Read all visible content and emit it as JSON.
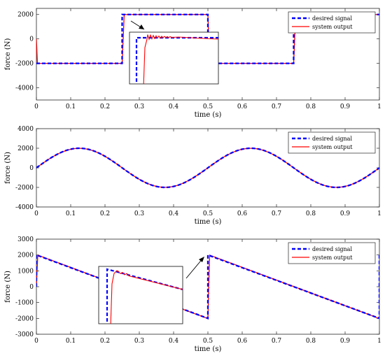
{
  "chart_data": [
    {
      "type": "line",
      "signal": "square",
      "xlabel": "time (s)",
      "ylabel": "force (N)",
      "xlim": [
        0,
        1
      ],
      "ylim": [
        -5000,
        2500
      ],
      "xticks": [
        "0",
        "0.1",
        "0.2",
        "0.3",
        "0.4",
        "0.5",
        "0.6",
        "0.7",
        "0.8",
        "0.9",
        "1"
      ],
      "yticks": [
        "-4000",
        "-2000",
        "0",
        "2000"
      ],
      "ytick_values": [
        -4000,
        -2000,
        0,
        2000
      ],
      "amplitude": 2000,
      "period": 1,
      "legend": {
        "position": "top-right",
        "entries": [
          "desired signal",
          "system output"
        ]
      },
      "series": [
        {
          "name": "desired signal",
          "style": "dashed",
          "color": "#0000ff",
          "x": [
            0,
            0.25,
            0.25,
            0.5,
            0.5,
            0.75,
            0.75,
            1
          ],
          "y": [
            -2000,
            -2000,
            2000,
            2000,
            -2000,
            -2000,
            2000,
            2000
          ]
        },
        {
          "name": "system output",
          "style": "solid",
          "color": "#ff0000",
          "x": [
            0,
            0.003,
            0.25,
            0.256,
            0.5,
            0.505,
            0.75,
            0.756,
            1
          ],
          "y": [
            0,
            -2000,
            -2000,
            2000,
            2000,
            -2000,
            -2000,
            2000,
            2000
          ]
        }
      ],
      "inset": {
        "type": "zoom",
        "region": "step at t = 0.25 s"
      }
    },
    {
      "type": "line",
      "signal": "sine",
      "xlabel": "time (s)",
      "ylabel": "force (N)",
      "xlim": [
        0,
        1
      ],
      "ylim": [
        -4000,
        4000
      ],
      "xticks": [
        "0",
        "0.1",
        "0.2",
        "0.3",
        "0.4",
        "0.5",
        "0.6",
        "0.7",
        "0.8",
        "0.9",
        "1"
      ],
      "yticks": [
        "-4000",
        "-2000",
        "0",
        "2000",
        "4000"
      ],
      "ytick_values": [
        -4000,
        -2000,
        0,
        2000,
        4000
      ],
      "amplitude": 2000,
      "period": 0.5,
      "legend": {
        "position": "top-right",
        "entries": [
          "desired signal",
          "system output"
        ]
      },
      "series": [
        {
          "name": "desired signal",
          "style": "dashed",
          "color": "#0000ff",
          "x": [
            0,
            0.125,
            0.25,
            0.375,
            0.5,
            0.625,
            0.75,
            0.875,
            1
          ],
          "y": [
            0,
            2000,
            0,
            -2000,
            0,
            2000,
            0,
            -2000,
            0
          ]
        },
        {
          "name": "system output",
          "style": "solid",
          "color": "#ff0000",
          "x": [
            0,
            0.125,
            0.25,
            0.375,
            0.5,
            0.625,
            0.75,
            0.875,
            1
          ],
          "y": [
            0,
            2000,
            0,
            -2000,
            0,
            2000,
            0,
            -2000,
            0
          ]
        }
      ]
    },
    {
      "type": "line",
      "signal": "sawtooth",
      "xlabel": "time (s)",
      "ylabel": "force (N)",
      "xlim": [
        0,
        1
      ],
      "ylim": [
        -3000,
        3000
      ],
      "xticks": [
        "0",
        "0.1",
        "0.2",
        "0.3",
        "0.4",
        "0.5",
        "0.6",
        "0.7",
        "0.8",
        "0.9",
        "1"
      ],
      "yticks": [
        "-3000",
        "-2000",
        "-1000",
        "0",
        "1000",
        "2000",
        "3000"
      ],
      "ytick_values": [
        -3000,
        -2000,
        -1000,
        0,
        1000,
        2000,
        3000
      ],
      "amplitude": 2000,
      "period": 0.5,
      "legend": {
        "position": "top-right",
        "entries": [
          "desired signal",
          "system output"
        ]
      },
      "series": [
        {
          "name": "desired signal",
          "style": "dashed",
          "color": "#0000ff",
          "x": [
            0,
            0,
            0.5,
            0.5,
            1,
            1
          ],
          "y": [
            0,
            2000,
            -2000,
            2000,
            -2000,
            2000
          ]
        },
        {
          "name": "system output",
          "style": "solid",
          "color": "#ff0000",
          "x": [
            0,
            0.004,
            0.5,
            0.505,
            1
          ],
          "y": [
            0,
            2000,
            -2000,
            2000,
            -2000
          ]
        }
      ],
      "inset": {
        "type": "zoom",
        "region": "reset at t = 0.5 s"
      }
    }
  ]
}
